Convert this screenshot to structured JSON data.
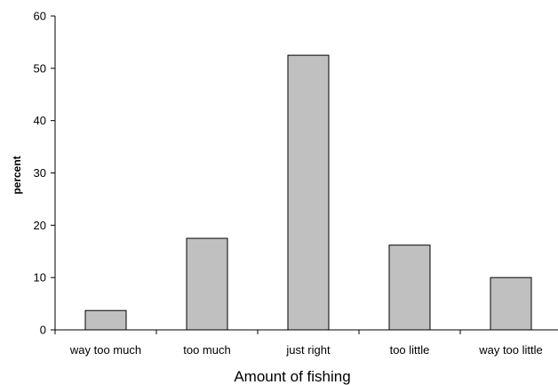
{
  "chart_data": {
    "type": "bar",
    "title": "",
    "xlabel": "Amount of fishing",
    "ylabel": "percent",
    "categories": [
      "way too much",
      "too much",
      "just right",
      "too little",
      "way too little"
    ],
    "values": [
      3.7,
      17.5,
      52.5,
      16.2,
      10.0
    ],
    "ylim": [
      0,
      60
    ],
    "yticks": [
      "0",
      "10",
      "20",
      "30",
      "40",
      "50",
      "60"
    ],
    "grid": false,
    "legend": "none",
    "colors": {
      "bar_fill": "#c0c0c0",
      "bar_stroke": "#000000",
      "axis": "#000000"
    }
  }
}
